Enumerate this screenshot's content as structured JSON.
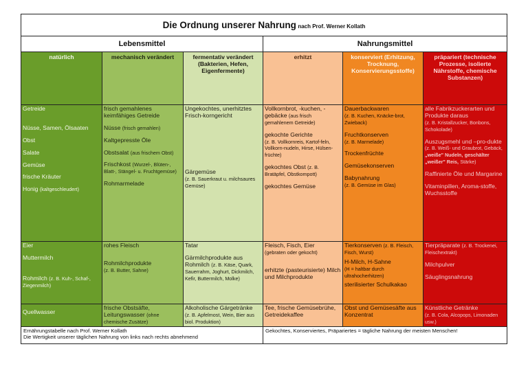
{
  "title": {
    "main": "Die Ordnung unserer Nahrung",
    "sub": "nach Prof. Werner Kollath"
  },
  "groups": {
    "left": "Lebensmittel",
    "right": "Nahrungsmittel"
  },
  "headers": [
    "natürlich",
    "mechanisch verändert",
    "fermentativ verändert (Bakterien, Hefen, Eigenfermente)",
    "erhitzt",
    "konserviert (Erhitzung, Trocknung, Konservierungsstoffe)",
    "präpariert (technische Prozesse, isolierte Nährstoffe, chemische Substanzen)"
  ],
  "row1": {
    "c1": [
      "Getreide",
      "Nüsse, Samen, Ölsaaten",
      "Obst",
      "Salate",
      "Gemüse",
      "frische Kräuter",
      "Honig",
      "(kaltgeschleudert)"
    ],
    "c2": [
      "frisch gemahlenes keimfähiges Getreide",
      "Nüsse",
      "(frisch gemahlen)",
      "Kaltgepresste Öle",
      "Obstsalat",
      "(aus frischem Obst)",
      "Frischkost",
      "(Wurzel-, Blüten-, Blatt-, Stängel- u. Fruchtgemüse)",
      "Rohmarmelade"
    ],
    "c3": [
      "Ungekochtes, unerhitztes Frisch-korngericht",
      "Gärgemüse",
      "(z. B. Sauerkraut u. milchsaures Gemüse)"
    ],
    "c4": [
      "Vollkornbrot, -kuchen, -gebäcke",
      "(aus frisch gemahlenem Getreide)",
      "gekochte Gerichte",
      "(z. B. Vollkornreis, Kartof-feln, Vollkorn-nudeln, Hirse, Hülsen-früchte)",
      "gekochtes Obst",
      "(z. B. Bratäpfel, Obstkompott)",
      "gekochtes Gemüse"
    ],
    "c5": [
      "Dauerbackwaren",
      "(z. B. Kuchen, Knäcke-brot, Zwieback)",
      "Fruchtkonserven",
      "(z. B. Marmelade)",
      "Trockenfrüchte",
      "Gemüsekonserven",
      "Babynahrung",
      "(z. B. Gemüse im Glas)"
    ],
    "c6": [
      "alle Fabrikzuckerarten und Produkte daraus",
      "(z. B. Kristallzucker, Bonbons, Schokolade)",
      "Auszugsmehl und –pro-dukte",
      "(z. B. Weiß- und Graubrot, Gebäck,",
      "„weiße\" Nudeln,",
      "geschälter „weißer\" Reis,",
      "Stärke)",
      "Raffinierte Öle und Margarine",
      "Vitaminpillen, Aroma-stoffe, Wuchsstoffe"
    ]
  },
  "row2": {
    "c1": [
      "Eier",
      "Muttermilch",
      "Rohmilch",
      "(z. B. Kuh-, Schaf-, Ziegenmilch)"
    ],
    "c2": [
      "rohes Fleisch",
      "Rohmilchprodukte",
      "(z. B. Butter, Sahne)"
    ],
    "c3": [
      "Tatar",
      "Gärmilchprodukte aus Rohmilch",
      "(z. B. Käse, Quark, Sauerrahm, Joghurt, Dickmilch, Kefir, Buttermilch, Molke)"
    ],
    "c4": [
      "Fleisch, Fisch, Eier",
      "(gebraten oder gekocht)",
      "erhitzte (pasteurisierte) Milch und Milchprodukte"
    ],
    "c5": [
      "Tierkonserven",
      "(z. B. Fleisch, Fisch, Wurst)",
      "H-Milch, H-Sahne",
      "(H = haltbar durch ultrahocherhitzen)",
      "sterilisierter Schulkakao"
    ],
    "c6": [
      "Tierpräparate",
      "(z. B. Trockenei, Fleischextrakt)",
      "Milchpulver",
      "Säuglingsnahrung"
    ]
  },
  "row3": {
    "c1": [
      "Quellwasser"
    ],
    "c2": [
      "frische Obstsäfte, Leitungswasser",
      "(ohne chemische Zusätze)"
    ],
    "c3": [
      "Alkoholische Gärgetränke",
      "(z. B. Apfelmost, Wein, Bier aus biol. Produktion)"
    ],
    "c4": [
      "Tee, frische Gemüsebrühe, Getreidekaffee"
    ],
    "c5": [
      "Obst und Gemüsesäfte aus Konzentrat"
    ],
    "c6": [
      "Künstliche Getränke",
      "(z. B. Cola, Alcopops, Limonaden usw.)"
    ]
  },
  "footer": {
    "left_line1": "Ernährungstabelle nach Prof. Werner Kollath",
    "left_line2": "Die Wertigkeit unserer täglichen Nahrung von links nach rechts abnehmend",
    "right": "Gekochtes, Konserviertes, Präpariertes = tägliche Nahrung der meisten Menschen!"
  },
  "colors": {
    "natuerlich": "#6a9d2a",
    "mechanisch": "#9bbf5d",
    "fermentativ": "#d3e2ae",
    "erhitzt": "#f9c194",
    "konserviert": "#f08722",
    "praepariert": "#cc0a0a"
  }
}
